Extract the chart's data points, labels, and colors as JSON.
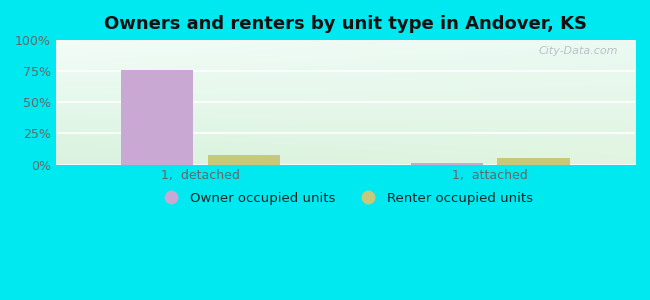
{
  "title": "Owners and renters by unit type in Andover, KS",
  "categories": [
    "1,  detached",
    "1,  attached"
  ],
  "owner_values": [
    76,
    1
  ],
  "renter_values": [
    8,
    5
  ],
  "owner_color": "#c9a8d4",
  "renter_color": "#c8c87a",
  "bar_width": 0.25,
  "ylim": [
    0,
    100
  ],
  "yticks": [
    0,
    25,
    50,
    75,
    100
  ],
  "ytick_labels": [
    "0%",
    "25%",
    "50%",
    "75%",
    "100%"
  ],
  "bg_colors": [
    "#ffffff",
    "#d0edd0",
    "#c8e8d8"
  ],
  "outer_bg": "#00e8f0",
  "title_fontsize": 13,
  "legend_labels": [
    "Owner occupied units",
    "Renter occupied units"
  ],
  "watermark": "City-Data.com",
  "x_positions": [
    0,
    1
  ],
  "xlim": [
    -0.5,
    1.5
  ]
}
